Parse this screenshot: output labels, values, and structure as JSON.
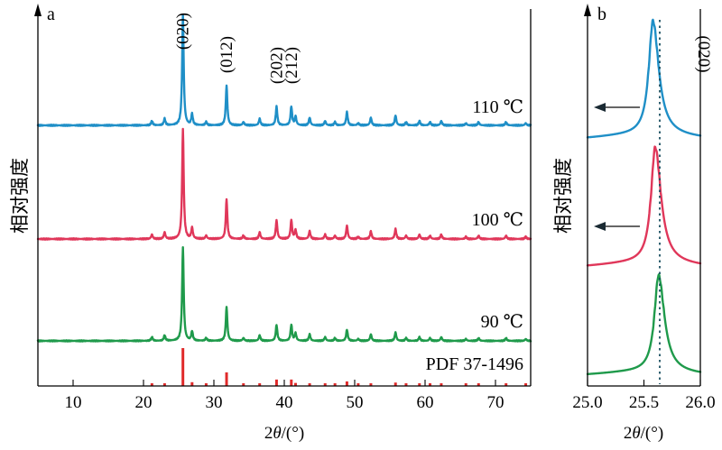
{
  "chart_data": [
    {
      "panel": "a",
      "type": "line",
      "xlabel_base": "2",
      "xlabel_sym": "θ",
      "xlabel_unit": "/(°)",
      "ylabel": "相对强度",
      "xlim": [
        5,
        75
      ],
      "xticks": [
        "10",
        "20",
        "30",
        "40",
        "50",
        "60",
        "70"
      ],
      "peak_labels": [
        {
          "text": "(020)",
          "x": 25.6
        },
        {
          "text": "(012)",
          "x": 31.8
        },
        {
          "text": "(202)",
          "x": 38.9
        },
        {
          "text": "(212)",
          "x": 41.0
        }
      ],
      "series": [
        {
          "name": "110 ℃",
          "color": "#1f8fc7"
        },
        {
          "name": "100 ℃",
          "color": "#e0375a"
        },
        {
          "name": "90 ℃",
          "color": "#1f9a4b"
        },
        {
          "name": "PDF 37-1496",
          "color": "#e02a2a"
        }
      ],
      "peaks": [
        {
          "x": 21.2,
          "h": 0.04
        },
        {
          "x": 23.0,
          "h": 0.06
        },
        {
          "x": 25.6,
          "h": 1.0
        },
        {
          "x": 26.9,
          "h": 0.1
        },
        {
          "x": 28.9,
          "h": 0.03
        },
        {
          "x": 31.8,
          "h": 0.36
        },
        {
          "x": 34.2,
          "h": 0.03
        },
        {
          "x": 36.5,
          "h": 0.06
        },
        {
          "x": 38.9,
          "h": 0.17
        },
        {
          "x": 41.0,
          "h": 0.17
        },
        {
          "x": 41.6,
          "h": 0.08
        },
        {
          "x": 43.6,
          "h": 0.07
        },
        {
          "x": 45.8,
          "h": 0.04
        },
        {
          "x": 47.2,
          "h": 0.03
        },
        {
          "x": 48.9,
          "h": 0.12
        },
        {
          "x": 50.5,
          "h": 0.02
        },
        {
          "x": 52.3,
          "h": 0.07
        },
        {
          "x": 55.8,
          "h": 0.09
        },
        {
          "x": 57.3,
          "h": 0.03
        },
        {
          "x": 59.2,
          "h": 0.04
        },
        {
          "x": 60.7,
          "h": 0.03
        },
        {
          "x": 62.3,
          "h": 0.04
        },
        {
          "x": 65.8,
          "h": 0.02
        },
        {
          "x": 67.6,
          "h": 0.03
        },
        {
          "x": 71.5,
          "h": 0.03
        },
        {
          "x": 74.3,
          "h": 0.02
        }
      ]
    },
    {
      "panel": "b",
      "type": "line",
      "xlabel_base": "2",
      "xlabel_sym": "θ",
      "xlabel_unit": "/(°)",
      "ylabel": "相对强度",
      "xlim": [
        25.0,
        26.0
      ],
      "xticks": [
        "25.0",
        "25.5",
        "26.0"
      ],
      "peak_label": "(020)",
      "reference_line_x": 25.64,
      "series": [
        {
          "name": "110 ℃",
          "peak_x": 25.58,
          "color": "#1f8fc7"
        },
        {
          "name": "100 ℃",
          "peak_x": 25.6,
          "color": "#e0375a"
        },
        {
          "name": "90 ℃",
          "peak_x": 25.63,
          "color": "#1f9a4b"
        }
      ]
    }
  ]
}
